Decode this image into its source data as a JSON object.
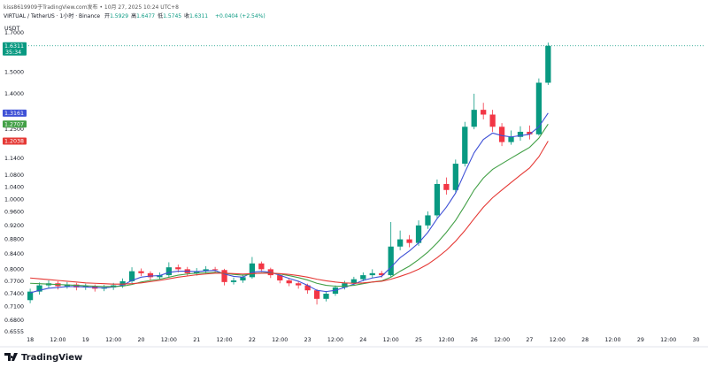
{
  "header": {
    "attribution": "kiss8619909于TradingView.com发布 • 10月 27, 2025 10:24 UTC+8",
    "symbol": "VIRTUAL / TetherUS · 1小时 · Binance",
    "ohlc": [
      {
        "label": "开",
        "value": 1.5929
      },
      {
        "label": "高",
        "value": 1.6477
      },
      {
        "label": "低",
        "value": 1.5745
      },
      {
        "label": "收",
        "value": 1.6311
      }
    ],
    "change": "+0.0404 (+2.54%)"
  },
  "brand": "TradingView",
  "chart_data": {
    "type": "candlestick",
    "currency": "USDT",
    "countdown": "35:34",
    "log_scale": true,
    "grid": false,
    "up_color": "#089981",
    "down_color": "#f23645",
    "last_price_color": "#089981",
    "x": [
      0,
      4,
      8,
      12,
      16,
      20,
      24,
      28,
      32,
      36,
      40,
      44,
      48,
      52,
      56,
      60,
      64,
      68,
      72,
      76,
      80,
      84,
      88,
      92,
      96,
      100,
      104,
      108,
      112,
      116,
      120,
      124,
      128,
      132,
      136,
      140,
      144,
      148,
      152,
      156,
      160,
      164,
      168,
      172,
      176,
      180,
      184,
      188,
      192,
      196,
      200,
      204,
      208,
      212,
      216,
      220,
      224
    ],
    "open": [
      0.725,
      0.745,
      0.76,
      0.765,
      0.758,
      0.762,
      0.755,
      0.758,
      0.752,
      0.755,
      0.76,
      0.77,
      0.795,
      0.79,
      0.78,
      0.785,
      0.805,
      0.8,
      0.79,
      0.795,
      0.8,
      0.798,
      0.768,
      0.772,
      0.78,
      0.815,
      0.8,
      0.785,
      0.772,
      0.765,
      0.76,
      0.748,
      0.728,
      0.74,
      0.755,
      0.765,
      0.775,
      0.785,
      0.79,
      0.785,
      0.86,
      0.88,
      0.87,
      0.92,
      0.95,
      1.05,
      1.03,
      1.12,
      1.26,
      1.33,
      1.31,
      1.26,
      1.2,
      1.22,
      1.24,
      1.23,
      1.45
    ],
    "high": [
      0.752,
      0.767,
      0.772,
      0.77,
      0.768,
      0.766,
      0.764,
      0.762,
      0.761,
      0.766,
      0.777,
      0.805,
      0.802,
      0.795,
      0.792,
      0.818,
      0.812,
      0.806,
      0.803,
      0.808,
      0.806,
      0.801,
      0.779,
      0.787,
      0.832,
      0.82,
      0.804,
      0.789,
      0.777,
      0.771,
      0.764,
      0.751,
      0.746,
      0.76,
      0.771,
      0.781,
      0.792,
      0.8,
      0.796,
      0.93,
      0.905,
      0.892,
      0.935,
      0.962,
      1.065,
      1.072,
      1.135,
      1.28,
      1.4,
      1.36,
      1.33,
      1.275,
      1.245,
      1.262,
      1.265,
      1.47,
      1.6477
    ],
    "low": [
      0.718,
      0.738,
      0.753,
      0.75,
      0.752,
      0.748,
      0.749,
      0.745,
      0.746,
      0.749,
      0.754,
      0.765,
      0.783,
      0.773,
      0.774,
      0.779,
      0.792,
      0.783,
      0.784,
      0.789,
      0.79,
      0.76,
      0.762,
      0.766,
      0.776,
      0.793,
      0.778,
      0.765,
      0.758,
      0.752,
      0.74,
      0.715,
      0.722,
      0.735,
      0.75,
      0.76,
      0.77,
      0.778,
      0.779,
      0.781,
      0.85,
      0.858,
      0.862,
      0.91,
      0.942,
      1.015,
      1.02,
      1.11,
      1.25,
      1.29,
      1.24,
      1.185,
      1.19,
      1.205,
      1.21,
      1.225,
      1.44
    ],
    "close": [
      0.745,
      0.76,
      0.765,
      0.758,
      0.762,
      0.755,
      0.758,
      0.752,
      0.755,
      0.76,
      0.77,
      0.795,
      0.79,
      0.78,
      0.785,
      0.805,
      0.8,
      0.79,
      0.795,
      0.8,
      0.798,
      0.768,
      0.772,
      0.78,
      0.815,
      0.8,
      0.785,
      0.772,
      0.765,
      0.76,
      0.748,
      0.728,
      0.74,
      0.755,
      0.765,
      0.775,
      0.785,
      0.79,
      0.785,
      0.86,
      0.88,
      0.87,
      0.92,
      0.95,
      1.05,
      1.03,
      1.12,
      1.26,
      1.33,
      1.31,
      1.26,
      1.2,
      1.22,
      1.24,
      1.23,
      1.45,
      1.6311
    ],
    "ma_series": [
      {
        "color": "#3f51d6",
        "values": [
          0.742,
          0.748,
          0.753,
          0.755,
          0.757,
          0.757,
          0.756,
          0.755,
          0.754,
          0.756,
          0.76,
          0.772,
          0.78,
          0.783,
          0.784,
          0.792,
          0.795,
          0.795,
          0.794,
          0.796,
          0.797,
          0.788,
          0.782,
          0.78,
          0.792,
          0.795,
          0.792,
          0.785,
          0.777,
          0.77,
          0.76,
          0.748,
          0.745,
          0.748,
          0.755,
          0.763,
          0.772,
          0.778,
          0.782,
          0.805,
          0.83,
          0.848,
          0.87,
          0.9,
          0.94,
          0.975,
          1.02,
          1.09,
          1.16,
          1.21,
          1.235,
          1.225,
          1.22,
          1.225,
          1.23,
          1.26,
          1.3161
        ]
      },
      {
        "color": "#43a047",
        "values": [
          0.765,
          0.764,
          0.763,
          0.762,
          0.761,
          0.76,
          0.759,
          0.758,
          0.757,
          0.757,
          0.758,
          0.762,
          0.768,
          0.772,
          0.775,
          0.78,
          0.785,
          0.788,
          0.79,
          0.791,
          0.792,
          0.79,
          0.787,
          0.785,
          0.788,
          0.791,
          0.791,
          0.788,
          0.784,
          0.779,
          0.773,
          0.765,
          0.76,
          0.758,
          0.758,
          0.76,
          0.764,
          0.768,
          0.771,
          0.78,
          0.795,
          0.808,
          0.825,
          0.845,
          0.87,
          0.9,
          0.935,
          0.98,
          1.03,
          1.07,
          1.1,
          1.12,
          1.14,
          1.16,
          1.18,
          1.215,
          1.2707
        ]
      },
      {
        "color": "#e53935",
        "values": [
          0.778,
          0.776,
          0.774,
          0.772,
          0.77,
          0.768,
          0.766,
          0.765,
          0.764,
          0.763,
          0.763,
          0.764,
          0.766,
          0.769,
          0.772,
          0.776,
          0.78,
          0.783,
          0.786,
          0.788,
          0.79,
          0.79,
          0.789,
          0.788,
          0.789,
          0.79,
          0.79,
          0.789,
          0.787,
          0.784,
          0.78,
          0.775,
          0.771,
          0.768,
          0.766,
          0.765,
          0.766,
          0.768,
          0.77,
          0.775,
          0.782,
          0.79,
          0.8,
          0.813,
          0.83,
          0.85,
          0.875,
          0.905,
          0.94,
          0.975,
          1.005,
          1.03,
          1.055,
          1.08,
          1.105,
          1.145,
          1.2038
        ]
      }
    ],
    "xlim": [
      -0.8,
      292
    ],
    "xticks": [
      {
        "value": 0,
        "label": "18"
      },
      {
        "value": 12,
        "label": "12:00"
      },
      {
        "value": 24,
        "label": "19"
      },
      {
        "value": 36,
        "label": "12:00"
      },
      {
        "value": 48,
        "label": "20"
      },
      {
        "value": 60,
        "label": "12:00"
      },
      {
        "value": 72,
        "label": "21"
      },
      {
        "value": 84,
        "label": "12:00"
      },
      {
        "value": 96,
        "label": "22"
      },
      {
        "value": 108,
        "label": "12:00"
      },
      {
        "value": 120,
        "label": "23"
      },
      {
        "value": 132,
        "label": "12:00"
      },
      {
        "value": 144,
        "label": "24"
      },
      {
        "value": 156,
        "label": "12:00"
      },
      {
        "value": 168,
        "label": "25"
      },
      {
        "value": 180,
        "label": "12:00"
      },
      {
        "value": 192,
        "label": "26"
      },
      {
        "value": 204,
        "label": "12:00"
      },
      {
        "value": 216,
        "label": "27"
      },
      {
        "value": 228,
        "label": "12:00"
      },
      {
        "value": 240,
        "label": "28"
      },
      {
        "value": 252,
        "label": "12:00"
      },
      {
        "value": 264,
        "label": "29"
      },
      {
        "value": 276,
        "label": "12:00"
      },
      {
        "value": 288,
        "label": "30"
      }
    ],
    "ylim": [
      0.65,
      1.774
    ],
    "yticks": [
      {
        "value": 1.7,
        "label": "1.7000"
      },
      {
        "value": 1.5,
        "label": "1.5000"
      },
      {
        "value": 1.4,
        "label": "1.4000"
      },
      {
        "value": 1.25,
        "label": "1.2500"
      },
      {
        "value": 1.14,
        "label": "1.1400"
      },
      {
        "value": 1.08,
        "label": "1.0800"
      },
      {
        "value": 1.04,
        "label": "1.0400"
      },
      {
        "value": 1.0,
        "label": "1.0000"
      },
      {
        "value": 0.96,
        "label": "0.9600"
      },
      {
        "value": 0.92,
        "label": "0.9200"
      },
      {
        "value": 0.88,
        "label": "0.8800"
      },
      {
        "value": 0.84,
        "label": "0.8400"
      },
      {
        "value": 0.8,
        "label": "0.8000"
      },
      {
        "value": 0.77,
        "label": "0.7700"
      },
      {
        "value": 0.74,
        "label": "0.7400"
      },
      {
        "value": 0.71,
        "label": "0.7100"
      },
      {
        "value": 0.68,
        "label": "0.6800"
      },
      {
        "value": 0.6555,
        "label": "0.6555"
      }
    ]
  }
}
